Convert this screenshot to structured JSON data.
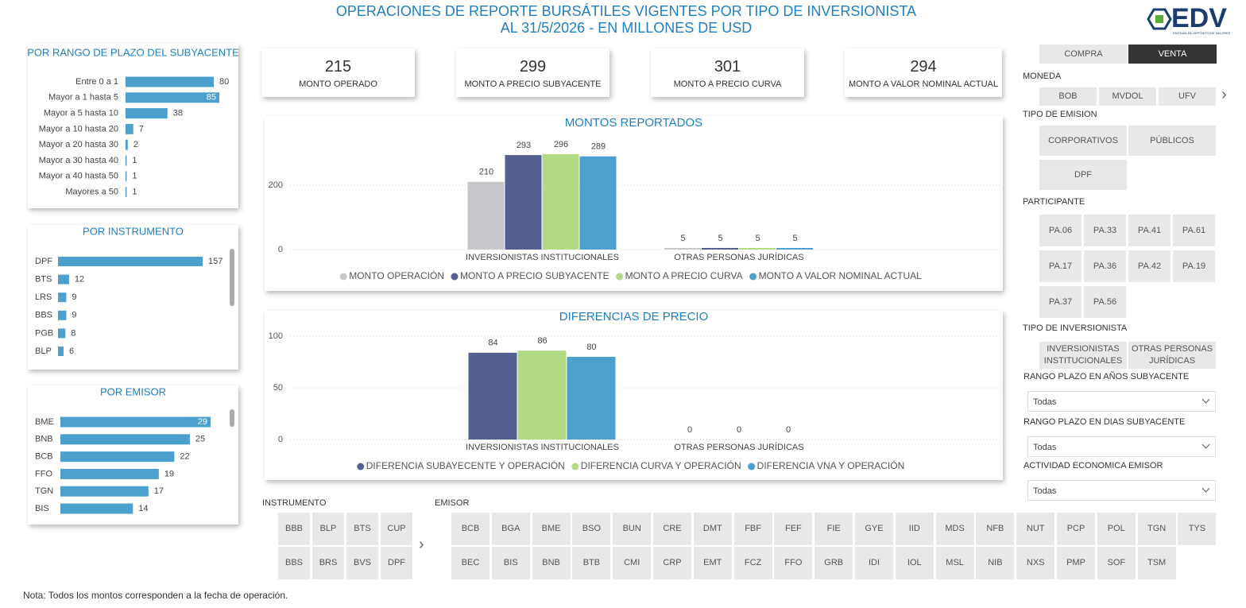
{
  "header": {
    "title": "OPERACIONES DE REPORTE BURSÁTILES VIGENTES POR TIPO DE INVERSIONISTA",
    "subtitle": "AL 31/5/2026 - EN MILLONES DE USD",
    "logo": "EDV",
    "logo_subtitle": "ENTIDAD DE DEPÓSITO DE VALORES"
  },
  "kpis": [
    {
      "value": 215,
      "label": "MONTO OPERADO"
    },
    {
      "value": 299,
      "label": "MONTO A PRECIO SUBYACENTE"
    },
    {
      "value": 301,
      "label": "MONTO A PRECIO CURVA"
    },
    {
      "value": 294,
      "label": "MONTO A VALOR NOMINAL ACTUAL"
    }
  ],
  "chart_data": [
    {
      "type": "bar",
      "orientation": "horizontal",
      "title": "POR RANGO DE PLAZO DEL SUBYACENTE",
      "categories": [
        "Entre 0 a 1",
        "Mayor a 1 hasta 5",
        "Mayor a 5 hasta 10",
        "Mayor a 10 hasta 20",
        "Mayor a 20 hasta 30",
        "Mayor a 30 hasta 40",
        "Mayor a 40 hasta 50",
        "Mayores a 50"
      ],
      "values": [
        80,
        85,
        38,
        7,
        2,
        1,
        1,
        1
      ],
      "color": "#4ba0cd"
    },
    {
      "type": "bar",
      "orientation": "horizontal",
      "title": "POR INSTRUMENTO",
      "categories": [
        "DPF",
        "BTS",
        "LRS",
        "BBS",
        "PGB",
        "BLP"
      ],
      "values": [
        157,
        12,
        9,
        9,
        8,
        6
      ],
      "color": "#4ba0cd"
    },
    {
      "type": "bar",
      "orientation": "horizontal",
      "title": "POR EMISOR",
      "categories": [
        "BME",
        "BNB",
        "BCB",
        "FFO",
        "TGN",
        "BIS"
      ],
      "values": [
        29,
        25,
        22,
        19,
        17,
        14
      ],
      "color": "#4ba0cd"
    },
    {
      "type": "bar",
      "title": "MONTOS REPORTADOS",
      "categories": [
        "INVERSIONISTAS INSTITUCIONALES",
        "OTRAS PERSONAS JURÍDICAS"
      ],
      "series": [
        {
          "name": "MONTO OPERACIÓN",
          "color": "#c8c8cc",
          "values": [
            210,
            5
          ]
        },
        {
          "name": "MONTO A PRECIO SUBYACENTE",
          "color": "#535f91",
          "values": [
            293,
            5
          ]
        },
        {
          "name": "MONTO A PRECIO CURVA",
          "color": "#b3d984",
          "values": [
            296,
            5
          ]
        },
        {
          "name": "MONTO A VALOR NOMINAL ACTUAL",
          "color": "#4ba0cd",
          "values": [
            289,
            5
          ]
        }
      ],
      "ylim": [
        0,
        350
      ],
      "yticks": [
        0,
        200
      ],
      "grid": true
    },
    {
      "type": "bar",
      "title": "DIFERENCIAS DE PRECIO",
      "categories": [
        "INVERSIONISTAS INSTITUCIONALES",
        "OTRAS PERSONAS JURÍDICAS"
      ],
      "series": [
        {
          "name": "DIFERENCIA SUBAYECENTE Y OPERACIÓN",
          "color": "#535f91",
          "values": [
            84,
            0
          ]
        },
        {
          "name": "DIFERENCIA CURVA Y OPERACIÓN",
          "color": "#b3d984",
          "values": [
            86,
            0
          ]
        },
        {
          "name": "DIFERENCIA VNA Y OPERACIÓN",
          "color": "#4ba0cd",
          "values": [
            80,
            0
          ]
        }
      ],
      "ylim": [
        0,
        100
      ],
      "yticks": [
        0,
        50,
        100
      ],
      "grid": true
    }
  ],
  "filters": {
    "mode": {
      "options": [
        "COMPRA",
        "VENTA"
      ],
      "selected": 1
    },
    "moneda": {
      "label": "MONEDA",
      "options": [
        "BOB",
        "MVDOL",
        "UFV"
      ]
    },
    "tipo_emision": {
      "label": "TIPO DE EMISION",
      "options": [
        "CORPORATIVOS",
        "PÚBLICOS",
        "DPF"
      ]
    },
    "participante": {
      "label": "PARTICIPANTE",
      "options": [
        "PA.06",
        "PA.33",
        "PA.41",
        "PA.61",
        "PA.17",
        "PA.36",
        "PA.42",
        "PA.19",
        "PA.37",
        "PA.56"
      ]
    },
    "tipo_inversionista": {
      "label": "TIPO DE INVERSIONISTA",
      "options": [
        "INVERSIONISTAS INSTITUCIONALES",
        "OTRAS PERSONAS JURÍDICAS"
      ]
    },
    "rango_anos": {
      "label": "RANGO PLAZO EN AÑOS SUBYACENTE",
      "value": "Todas"
    },
    "rango_dias": {
      "label": "RANGO PLAZO EN DIAS SUBYACENTE",
      "value": "Todas"
    },
    "actividad": {
      "label": "ACTIVIDAD ECONOMICA EMISOR",
      "value": "Todas"
    },
    "instrumento": {
      "label": "INSTRUMENTO",
      "options": [
        "BBB",
        "BLP",
        "BTS",
        "CUP",
        "BBS",
        "BRS",
        "BVS",
        "DPF"
      ]
    },
    "emisor": {
      "label": "EMISOR",
      "options": [
        "BCB",
        "BGA",
        "BME",
        "BSO",
        "BUN",
        "CRE",
        "DMT",
        "FBF",
        "FEF",
        "FIE",
        "GYE",
        "IID",
        "MDS",
        "NFB",
        "NUT",
        "PCP",
        "POL",
        "TGN",
        "TYS",
        "BEC",
        "BIS",
        "BNB",
        "BTB",
        "CMI",
        "CRP",
        "EMT",
        "FCZ",
        "FFO",
        "GRB",
        "IDI",
        "IOL",
        "MSL",
        "NIB",
        "NXS",
        "PMP",
        "SOF",
        "TSM"
      ]
    }
  },
  "note": "Nota: Todos los montos corresponden a la fecha de operación."
}
